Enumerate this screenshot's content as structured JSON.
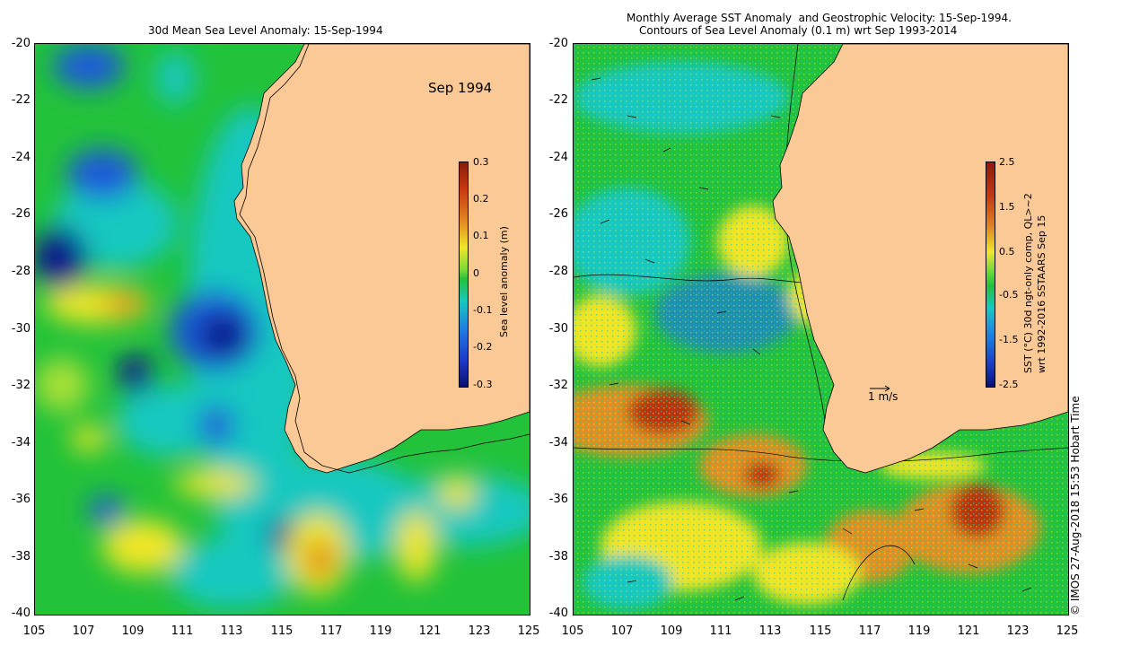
{
  "left": {
    "title": "30d Mean Sea Level Anomaly: 15-Sep-1994",
    "date_label": "Sep 1994",
    "colorbar": {
      "label": "Sea level anomaly (m)",
      "ticks": [
        "0.3",
        "0.2",
        "0.1",
        "0",
        "-0.1",
        "-0.2",
        "-0.3"
      ]
    }
  },
  "right": {
    "title_line1": "Monthly Average SST Anomaly  and Geostrophic Velocity: 15-Sep-1994.",
    "title_line2": "Contours of Sea Level Anomaly (0.1 m) wrt Sep 1993-2014",
    "scale_label": "1 m/s",
    "colorbar": {
      "label_line1": "SST (°C) 30d ngt-only comp, QL>~2",
      "label_line2": "wrt 1992-2016 SSTAARS Sep 15",
      "ticks": [
        "2.5",
        "1.5",
        "0.5",
        "-0.5",
        "-1.5",
        "-2.5"
      ]
    }
  },
  "axes": {
    "y_ticks": [
      "-20",
      "-22",
      "-24",
      "-26",
      "-28",
      "-30",
      "-32",
      "-34",
      "-36",
      "-38",
      "-40"
    ],
    "x_ticks": [
      "105",
      "107",
      "109",
      "111",
      "113",
      "115",
      "117",
      "119",
      "121",
      "123",
      "125"
    ]
  },
  "credit": "© IMOS 27-Aug-2018 15:53 Hobart Time",
  "colors": {
    "land": "#fbc996",
    "ocean_green": "#22c23a",
    "ocean_cyan": "#18c8c0",
    "ocean_blue": "#1e5ad8",
    "ocean_darkblue": "#0a1e8c",
    "ocean_yellow": "#f0e628",
    "ocean_orange": "#e09020",
    "ocean_red": "#b83010"
  }
}
